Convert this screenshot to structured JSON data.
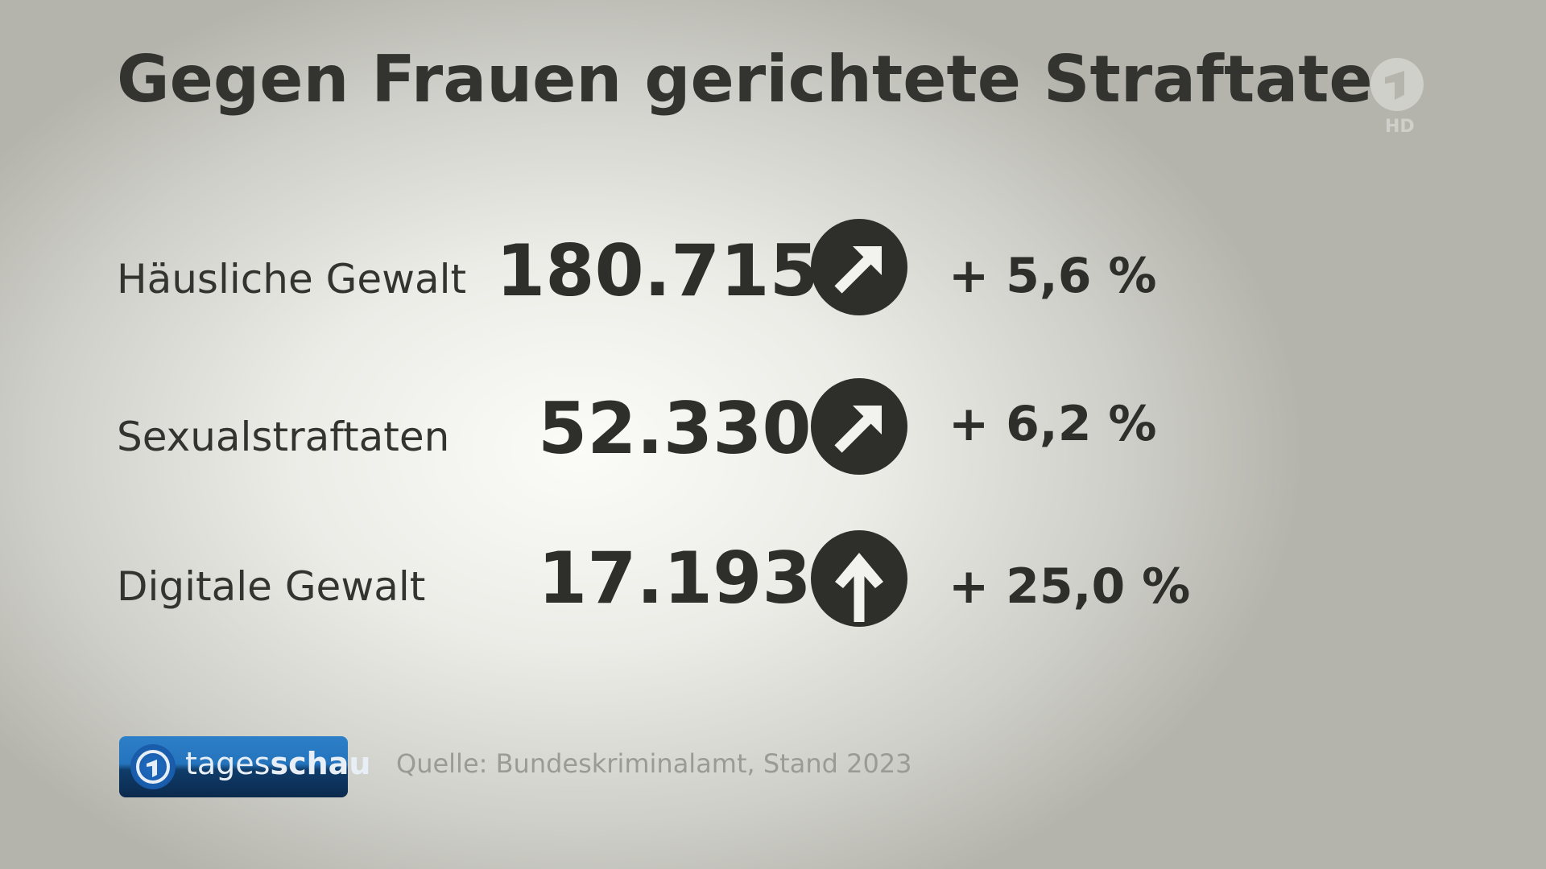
{
  "title": "Gegen Frauen gerichtete Straftaten",
  "channel_logo": {
    "text": "HD"
  },
  "rows": [
    {
      "label": "Häusliche Gewalt",
      "value": "180.715",
      "trend_icon": "arrow-up-right-icon",
      "change": "+ 5,6 %"
    },
    {
      "label": "Sexualstraftaten",
      "value": "52.330",
      "trend_icon": "arrow-up-right-icon",
      "change": "+ 6,2 %"
    },
    {
      "label": "Digitale Gewalt",
      "value": "17.193",
      "trend_icon": "arrow-up-icon",
      "change": "+ 25,0 %"
    }
  ],
  "brand": {
    "prefix": "tages",
    "suffix": "schau"
  },
  "source": "Quelle: Bundeskriminalamt, Stand 2023"
}
